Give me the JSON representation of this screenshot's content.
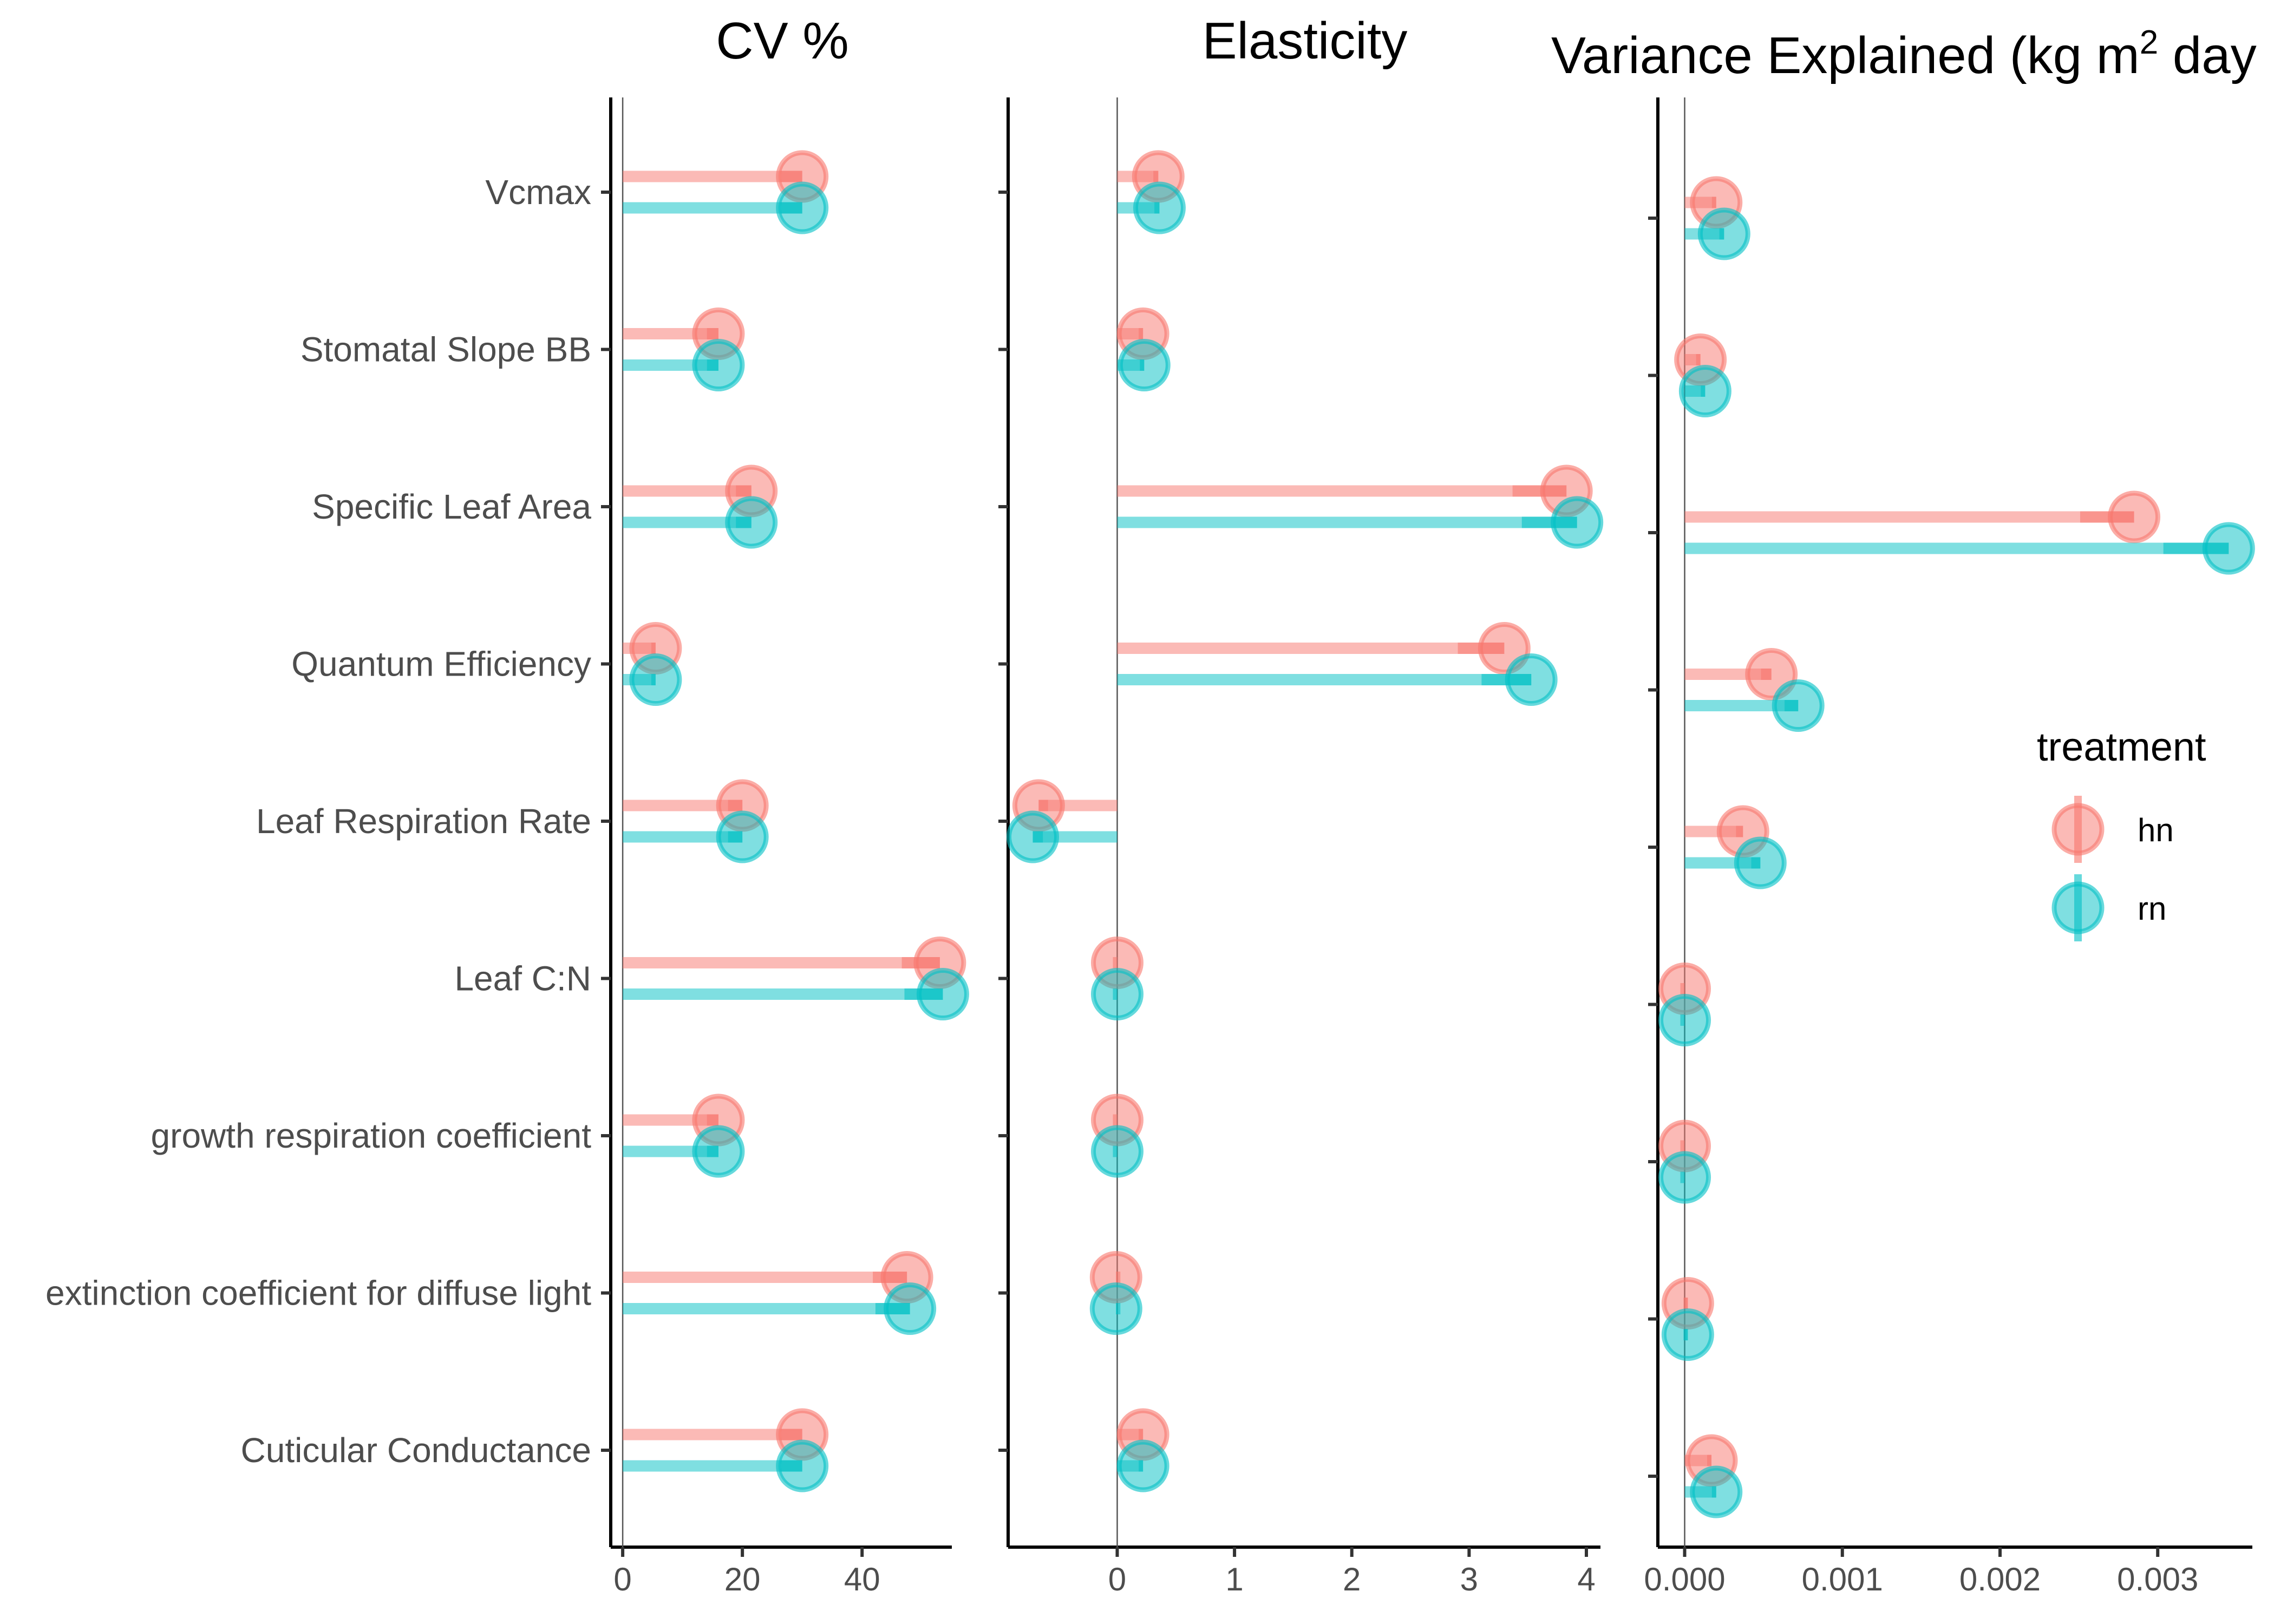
{
  "chart_data": {
    "type": "lollipop",
    "categories": [
      "Vcmax",
      "Stomatal Slope BB",
      "Specific Leaf Area",
      "Quantum Efficiency",
      "Leaf Respiration Rate",
      "Leaf C:N",
      "growth respiration coefficient",
      "extinction coefficient for diffuse light",
      "Cuticular Conductance"
    ],
    "legend": {
      "title": "treatment",
      "position": "right"
    },
    "colors": {
      "hn": "#F8766D",
      "rn": "#00BFC4"
    },
    "panels": [
      {
        "title": "CV %",
        "title_sup": "",
        "title_tail": "",
        "xlim": [
          -2,
          55
        ],
        "ticks": [
          0,
          20,
          40
        ],
        "tick_labels": [
          "0",
          "20",
          "40"
        ],
        "series": [
          {
            "name": "hn",
            "values": [
              30,
              16,
              21.5,
              5.5,
              20,
              53,
              16,
              47.5,
              30
            ]
          },
          {
            "name": "rn",
            "values": [
              30,
              16,
              21.5,
              5.5,
              20,
              53.5,
              16,
              48,
              30
            ]
          }
        ]
      },
      {
        "title": "Elasticity",
        "title_sup": "",
        "title_tail": "",
        "xlim": [
          -0.93,
          4.12
        ],
        "ticks": [
          0,
          1,
          2,
          3,
          4
        ],
        "tick_labels": [
          "0",
          "1",
          "2",
          "3",
          "4"
        ],
        "series": [
          {
            "name": "hn",
            "values": [
              0.35,
              0.22,
              3.83,
              3.3,
              -0.67,
              0.0,
              0.0,
              -0.01,
              0.22
            ]
          },
          {
            "name": "rn",
            "values": [
              0.36,
              0.23,
              3.92,
              3.53,
              -0.72,
              0.0,
              0.0,
              -0.01,
              0.22
            ]
          }
        ]
      },
      {
        "title": "Variance Explained (kg m",
        "title_sup": "2",
        "title_tail": " day",
        "xlim": [
          -0.00017,
          0.0036
        ],
        "ticks": [
          0,
          0.001,
          0.002,
          0.003
        ],
        "tick_labels": [
          "0.000",
          "0.001",
          "0.002",
          "0.003"
        ],
        "series": [
          {
            "name": "hn",
            "values": [
              0.0002,
              0.0001,
              0.00285,
              0.00055,
              0.00037,
              0.0,
              0.0,
              2e-05,
              0.00017
            ]
          },
          {
            "name": "rn",
            "values": [
              0.00025,
              0.00013,
              0.00345,
              0.00072,
              0.00048,
              0.0,
              0.0,
              2e-05,
              0.0002
            ]
          }
        ]
      }
    ]
  }
}
